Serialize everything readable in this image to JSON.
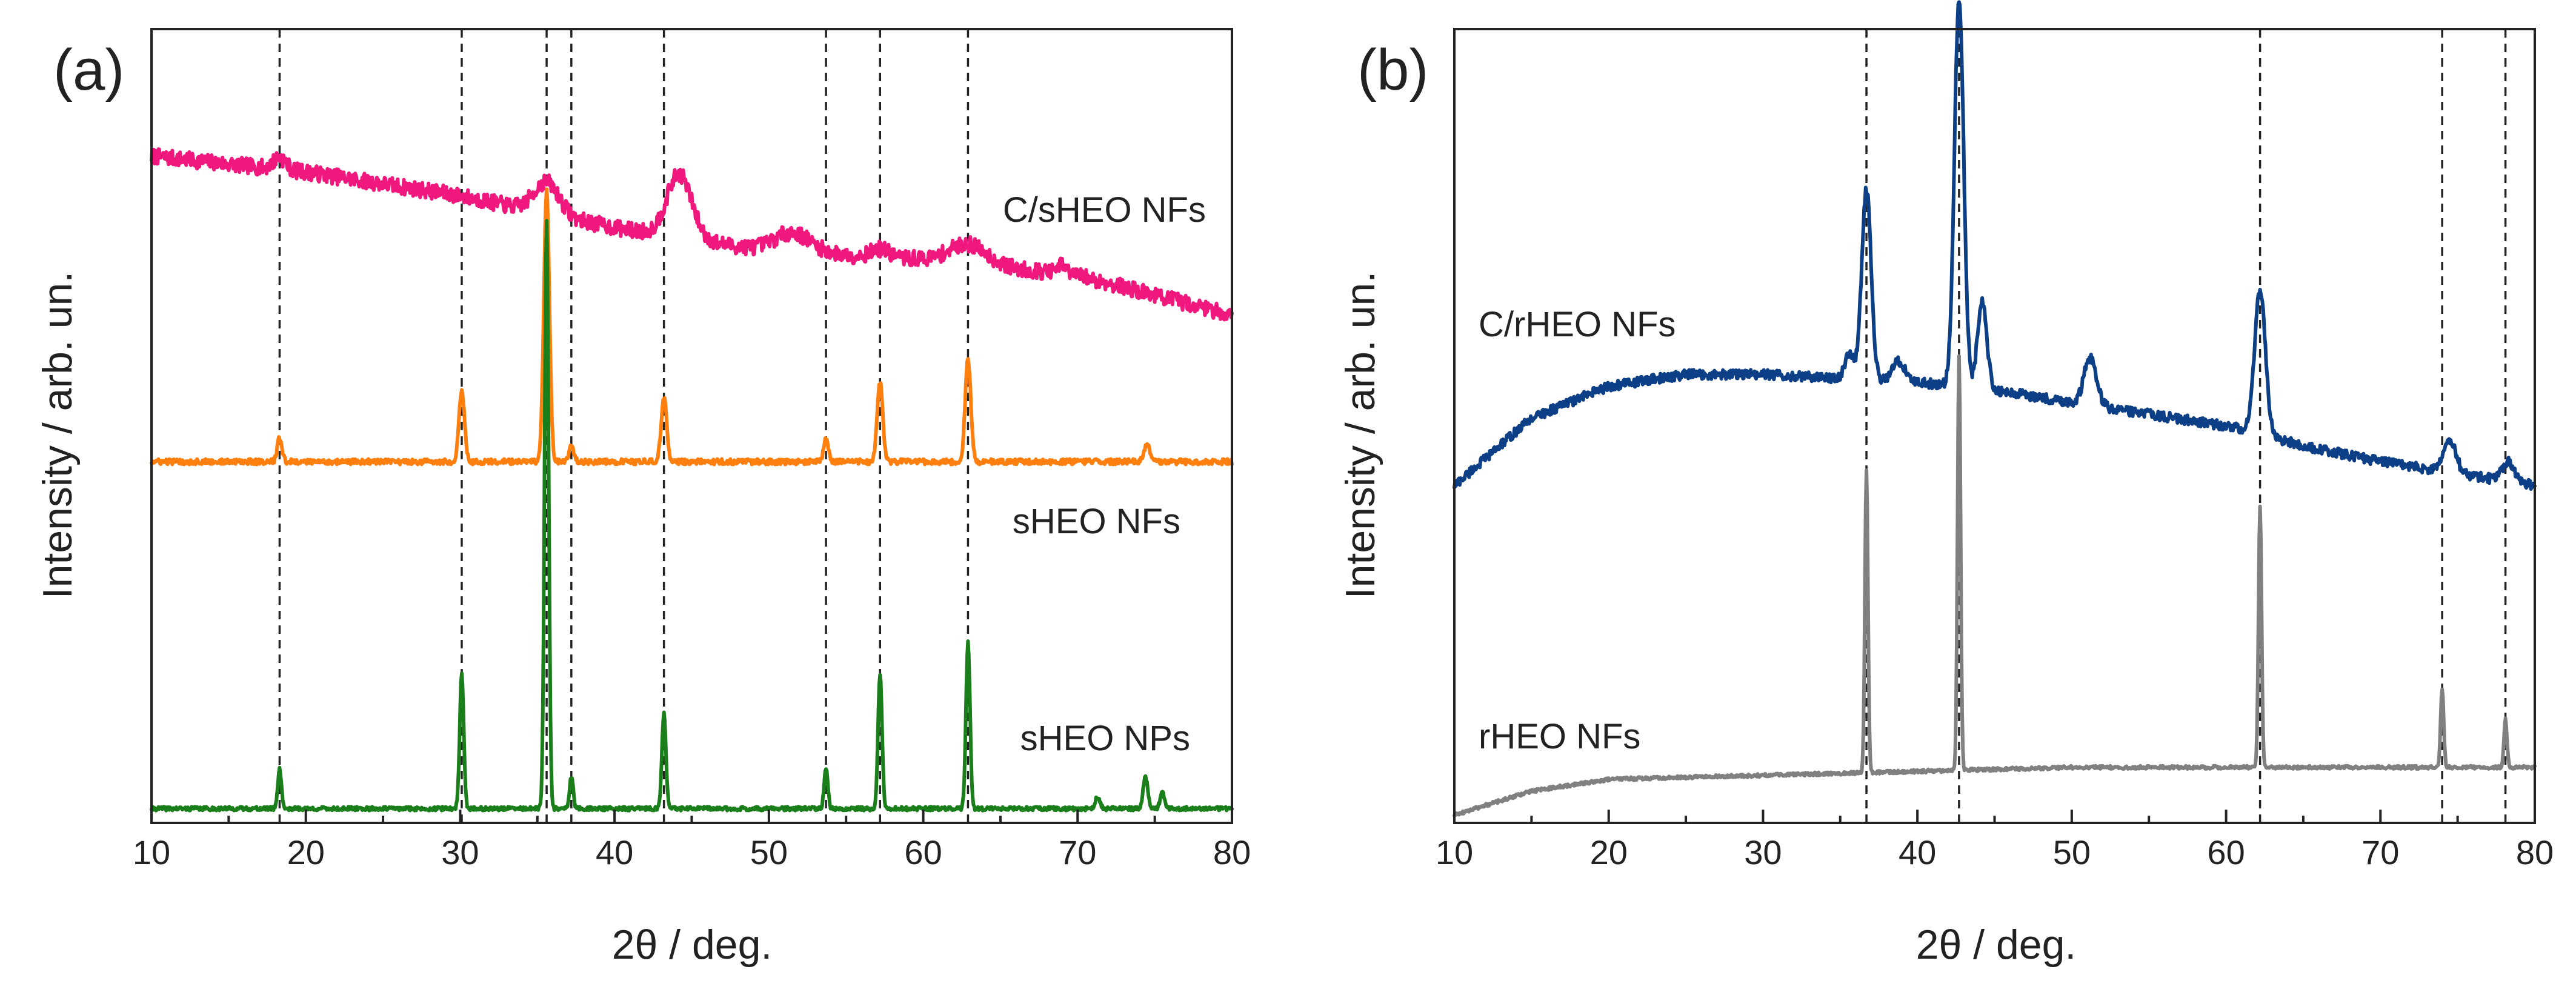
{
  "chart_data": [
    {
      "panel": "(a)",
      "type": "line",
      "xlabel": "2θ / deg.",
      "ylabel": "Intensity / arb. un.",
      "xlim": [
        10,
        80
      ],
      "ylim": [
        0,
        100
      ],
      "x_ticks": [
        10,
        20,
        30,
        40,
        50,
        60,
        70,
        80
      ],
      "y_tick_labels": false,
      "reference_lines": [
        18.3,
        30.1,
        35.6,
        37.2,
        43.2,
        53.7,
        57.2,
        62.9
      ],
      "series": [
        {
          "name": "C/sHEO NFs",
          "color": "#f0187c",
          "baseline": [
            [
              10,
              84
            ],
            [
              20,
              82
            ],
            [
              30,
              79
            ],
            [
              40,
              75
            ],
            [
              50,
              72
            ],
            [
              60,
              71
            ],
            [
              70,
              69
            ],
            [
              80,
              64
            ]
          ],
          "peaks": [
            [
              18.3,
              1.5,
              0.4
            ],
            [
              35.6,
              4,
              0.8
            ],
            [
              44.2,
              8,
              0.8
            ],
            [
              51.5,
              2.5,
              1.2
            ],
            [
              57.2,
              1,
              0.6
            ],
            [
              62.9,
              2.5,
              1.2
            ],
            [
              69,
              1,
              0.3
            ]
          ],
          "noise": 1.0
        },
        {
          "name": "sHEO NFs",
          "color": "#ff7f0e",
          "baseline": [
            [
              10,
              45.5
            ],
            [
              80,
              45.5
            ]
          ],
          "peaks": [
            [
              18.3,
              3,
              0.15
            ],
            [
              30.1,
              9,
              0.18
            ],
            [
              35.6,
              34,
              0.18
            ],
            [
              37.2,
              2,
              0.15
            ],
            [
              43.2,
              8,
              0.18
            ],
            [
              53.7,
              3,
              0.15
            ],
            [
              57.2,
              10,
              0.18
            ],
            [
              62.9,
              13,
              0.18
            ],
            [
              74.5,
              2,
              0.2
            ]
          ],
          "noise": 0.35
        },
        {
          "name": "sHEO NPs",
          "color": "#1a7f1a",
          "baseline": [
            [
              10,
              1.8
            ],
            [
              80,
              1.8
            ]
          ],
          "peaks": [
            [
              18.3,
              5,
              0.12
            ],
            [
              30.1,
              17,
              0.13
            ],
            [
              35.6,
              74,
              0.13
            ],
            [
              37.2,
              4,
              0.12
            ],
            [
              43.2,
              12,
              0.13
            ],
            [
              53.7,
              5,
              0.12
            ],
            [
              57.2,
              17,
              0.13
            ],
            [
              62.9,
              21,
              0.13
            ],
            [
              71.3,
              1.5,
              0.15
            ],
            [
              74.4,
              4,
              0.15
            ],
            [
              75.5,
              2,
              0.15
            ]
          ],
          "noise": 0.25
        }
      ]
    },
    {
      "panel": "(b)",
      "type": "line",
      "xlabel": "2θ / deg.",
      "ylabel": "Intensity / arb. un.",
      "xlim": [
        10,
        80
      ],
      "ylim": [
        0,
        100
      ],
      "x_ticks": [
        10,
        20,
        30,
        40,
        50,
        60,
        70,
        80
      ],
      "y_tick_labels": false,
      "reference_lines": [
        36.7,
        42.7,
        62.2,
        74,
        78.1
      ],
      "series": [
        {
          "name": "C/rHEO NFs",
          "color": "#0d3f86",
          "baseline": [
            [
              10,
              42.5
            ],
            [
              15,
              51
            ],
            [
              20,
              55
            ],
            [
              25,
              56.5
            ],
            [
              30,
              56.5
            ],
            [
              35,
              56
            ],
            [
              36,
              56
            ],
            [
              40,
              55.5
            ],
            [
              45,
              54.5
            ],
            [
              50,
              53
            ],
            [
              55,
              51.5
            ],
            [
              60,
              50
            ],
            [
              61.5,
              49.5
            ],
            [
              63,
              48.5
            ],
            [
              65,
              47.5
            ],
            [
              70,
              45.5
            ],
            [
              75,
              44
            ],
            [
              80,
              42.5
            ]
          ],
          "peaks": [
            [
              35.6,
              3,
              0.3
            ],
            [
              36.7,
              24,
              0.3
            ],
            [
              38.8,
              2.5,
              0.4
            ],
            [
              42.7,
              49,
              0.3
            ],
            [
              44.2,
              11,
              0.3
            ],
            [
              51.2,
              6,
              0.4
            ],
            [
              62.2,
              18,
              0.35
            ],
            [
              74.5,
              4,
              0.4
            ],
            [
              78.3,
              2.5,
              0.4
            ]
          ],
          "noise": 0.6
        },
        {
          "name": "rHEO NFs",
          "color": "#808080",
          "baseline": [
            [
              10,
              1
            ],
            [
              15,
              4
            ],
            [
              20,
              5.5
            ],
            [
              30,
              6
            ],
            [
              40,
              6.5
            ],
            [
              50,
              7
            ],
            [
              60,
              7
            ],
            [
              70,
              7
            ],
            [
              80,
              7
            ]
          ],
          "peaks": [
            [
              36.7,
              38,
              0.1
            ],
            [
              42.7,
              52,
              0.1
            ],
            [
              62.2,
              33,
              0.1
            ],
            [
              74,
              10,
              0.1
            ],
            [
              78.1,
              6,
              0.1
            ]
          ],
          "noise": 0.2
        }
      ]
    }
  ]
}
